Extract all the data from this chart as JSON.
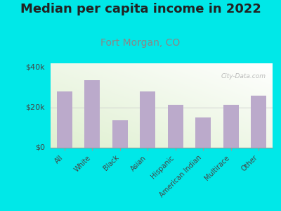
{
  "title": "Median per capita income in 2022",
  "subtitle": "Fort Morgan, CO",
  "categories": [
    "All",
    "White",
    "Black",
    "Asian",
    "Hispanic",
    "American Indian",
    "Multirace",
    "Other"
  ],
  "values": [
    28000,
    33500,
    13500,
    28000,
    21500,
    15000,
    21500,
    26000
  ],
  "bar_color": "#bbaacb",
  "title_fontsize": 13,
  "subtitle_fontsize": 10,
  "subtitle_color": "#888888",
  "background_outer": "#00e8e8",
  "ylim": [
    0,
    42000
  ],
  "yticks": [
    0,
    20000,
    40000
  ],
  "ytick_labels": [
    "$0",
    "$20k",
    "$40k"
  ],
  "watermark": "City-Data.com",
  "title_color": "#222222"
}
